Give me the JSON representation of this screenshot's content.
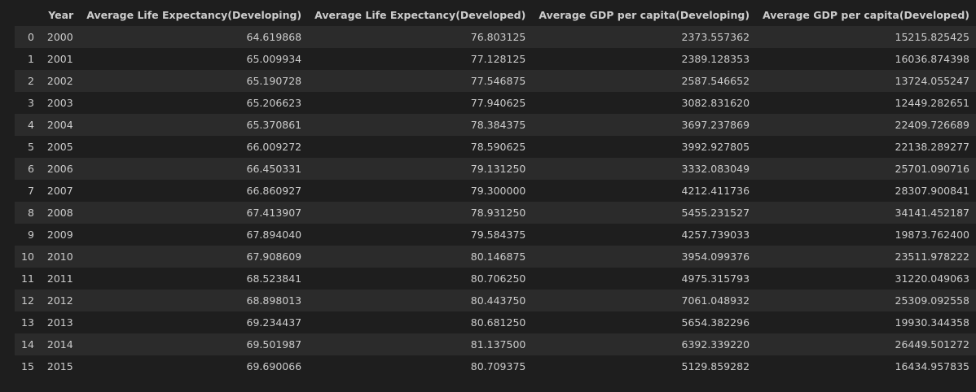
{
  "columns": {
    "index": "",
    "year": "Year",
    "le_developing": "Average Life Expectancy(Developing)",
    "le_developed": "Average Life Expectancy(Developed)",
    "gdp_developing": "Average GDP per capita(Developing)",
    "gdp_developed": "Average GDP per capita(Developed)"
  },
  "rows": [
    {
      "index": "0",
      "year": "2000",
      "le_developing": "64.619868",
      "le_developed": "76.803125",
      "gdp_developing": "2373.557362",
      "gdp_developed": "15215.825425"
    },
    {
      "index": "1",
      "year": "2001",
      "le_developing": "65.009934",
      "le_developed": "77.128125",
      "gdp_developing": "2389.128353",
      "gdp_developed": "16036.874398"
    },
    {
      "index": "2",
      "year": "2002",
      "le_developing": "65.190728",
      "le_developed": "77.546875",
      "gdp_developing": "2587.546652",
      "gdp_developed": "13724.055247"
    },
    {
      "index": "3",
      "year": "2003",
      "le_developing": "65.206623",
      "le_developed": "77.940625",
      "gdp_developing": "3082.831620",
      "gdp_developed": "12449.282651"
    },
    {
      "index": "4",
      "year": "2004",
      "le_developing": "65.370861",
      "le_developed": "78.384375",
      "gdp_developing": "3697.237869",
      "gdp_developed": "22409.726689"
    },
    {
      "index": "5",
      "year": "2005",
      "le_developing": "66.009272",
      "le_developed": "78.590625",
      "gdp_developing": "3992.927805",
      "gdp_developed": "22138.289277"
    },
    {
      "index": "6",
      "year": "2006",
      "le_developing": "66.450331",
      "le_developed": "79.131250",
      "gdp_developing": "3332.083049",
      "gdp_developed": "25701.090716"
    },
    {
      "index": "7",
      "year": "2007",
      "le_developing": "66.860927",
      "le_developed": "79.300000",
      "gdp_developing": "4212.411736",
      "gdp_developed": "28307.900841"
    },
    {
      "index": "8",
      "year": "2008",
      "le_developing": "67.413907",
      "le_developed": "78.931250",
      "gdp_developing": "5455.231527",
      "gdp_developed": "34141.452187"
    },
    {
      "index": "9",
      "year": "2009",
      "le_developing": "67.894040",
      "le_developed": "79.584375",
      "gdp_developing": "4257.739033",
      "gdp_developed": "19873.762400"
    },
    {
      "index": "10",
      "year": "2010",
      "le_developing": "67.908609",
      "le_developed": "80.146875",
      "gdp_developing": "3954.099376",
      "gdp_developed": "23511.978222"
    },
    {
      "index": "11",
      "year": "2011",
      "le_developing": "68.523841",
      "le_developed": "80.706250",
      "gdp_developing": "4975.315793",
      "gdp_developed": "31220.049063"
    },
    {
      "index": "12",
      "year": "2012",
      "le_developing": "68.898013",
      "le_developed": "80.443750",
      "gdp_developing": "7061.048932",
      "gdp_developed": "25309.092558"
    },
    {
      "index": "13",
      "year": "2013",
      "le_developing": "69.234437",
      "le_developed": "80.681250",
      "gdp_developing": "5654.382296",
      "gdp_developed": "19930.344358"
    },
    {
      "index": "14",
      "year": "2014",
      "le_developing": "69.501987",
      "le_developed": "81.137500",
      "gdp_developing": "6392.339220",
      "gdp_developed": "26449.501272"
    },
    {
      "index": "15",
      "year": "2015",
      "le_developing": "69.690066",
      "le_developed": "80.709375",
      "gdp_developing": "5129.859282",
      "gdp_developed": "16434.957835"
    }
  ]
}
